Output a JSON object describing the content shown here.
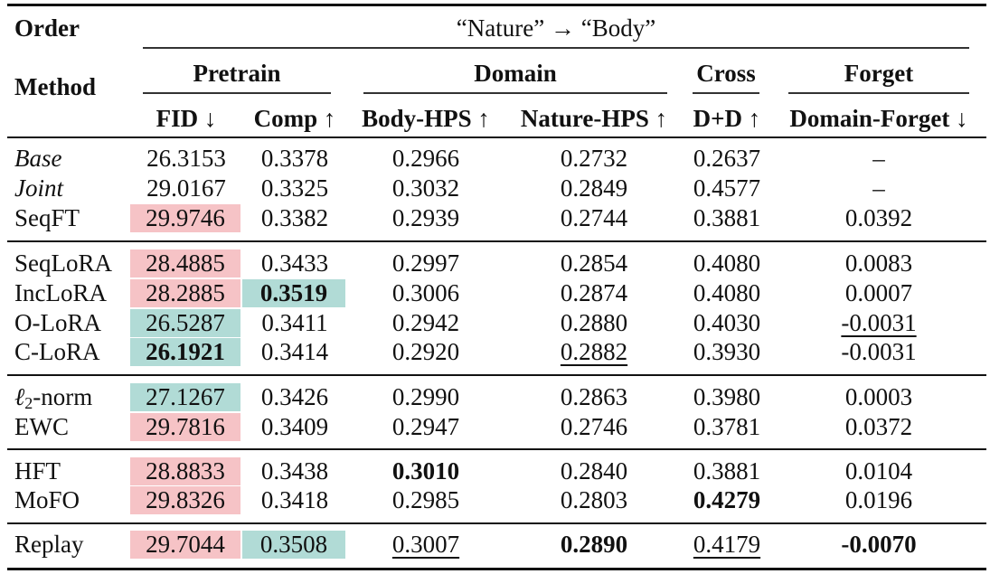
{
  "header": {
    "order_label": "Order",
    "method_label": "Method",
    "setting": "“Nature” → “Body”",
    "groups": {
      "pretrain": "Pretrain",
      "domain": "Domain",
      "cross": "Cross",
      "forget": "Forget"
    },
    "columns": [
      "FID ↓",
      "Comp ↑",
      "Body-HPS ↑",
      "Nature-HPS ↑",
      "D+D ↑",
      "Domain-Forget ↓"
    ]
  },
  "rows": [
    {
      "method": "Base",
      "fid": "26.3153",
      "comp": "0.3378",
      "body_hps": "0.2966",
      "nature_hps": "0.2732",
      "dd": "0.2637",
      "domain_forget": "–"
    },
    {
      "method": "Joint",
      "fid": "29.0167",
      "comp": "0.3325",
      "body_hps": "0.3032",
      "nature_hps": "0.2849",
      "dd": "0.4577",
      "domain_forget": "–"
    },
    {
      "method": "SeqFT",
      "fid": "29.9746",
      "comp": "0.3382",
      "body_hps": "0.2939",
      "nature_hps": "0.2744",
      "dd": "0.3881",
      "domain_forget": "0.0392"
    },
    {
      "method": "SeqLoRA",
      "fid": "28.4885",
      "comp": "0.3433",
      "body_hps": "0.2997",
      "nature_hps": "0.2854",
      "dd": "0.4080",
      "domain_forget": "0.0083"
    },
    {
      "method": "IncLoRA",
      "fid": "28.2885",
      "comp": "0.3519",
      "body_hps": "0.3006",
      "nature_hps": "0.2874",
      "dd": "0.4080",
      "domain_forget": "0.0007"
    },
    {
      "method": "O-LoRA",
      "fid": "26.5287",
      "comp": "0.3411",
      "body_hps": "0.2942",
      "nature_hps": "0.2880",
      "dd": "0.4030",
      "domain_forget": "-0.0031"
    },
    {
      "method": "C-LoRA",
      "fid": "26.1921",
      "comp": "0.3414",
      "body_hps": "0.2920",
      "nature_hps": "0.2882",
      "dd": "0.3930",
      "domain_forget": "-0.0031"
    },
    {
      "method_prefix": "ℓ",
      "method_sub": "2",
      "method_suffix": "-norm",
      "fid": "27.1267",
      "comp": "0.3426",
      "body_hps": "0.2990",
      "nature_hps": "0.2863",
      "dd": "0.3980",
      "domain_forget": "0.0003"
    },
    {
      "method": "EWC",
      "fid": "29.7816",
      "comp": "0.3409",
      "body_hps": "0.2947",
      "nature_hps": "0.2746",
      "dd": "0.3781",
      "domain_forget": "0.0372"
    },
    {
      "method": "HFT",
      "fid": "28.8833",
      "comp": "0.3438",
      "body_hps": "0.3010",
      "nature_hps": "0.2840",
      "dd": "0.3881",
      "domain_forget": "0.0104"
    },
    {
      "method": "MoFO",
      "fid": "29.8326",
      "comp": "0.3418",
      "body_hps": "0.2985",
      "nature_hps": "0.2803",
      "dd": "0.4279",
      "domain_forget": "0.0196"
    },
    {
      "method": "Replay",
      "fid": "29.7044",
      "comp": "0.3508",
      "body_hps": "0.3007",
      "nature_hps": "0.2890",
      "dd": "0.4179",
      "domain_forget": "-0.0070"
    }
  ],
  "highlight_colors": {
    "pink": "#f6c3c6",
    "teal": "#b1dbd6"
  }
}
